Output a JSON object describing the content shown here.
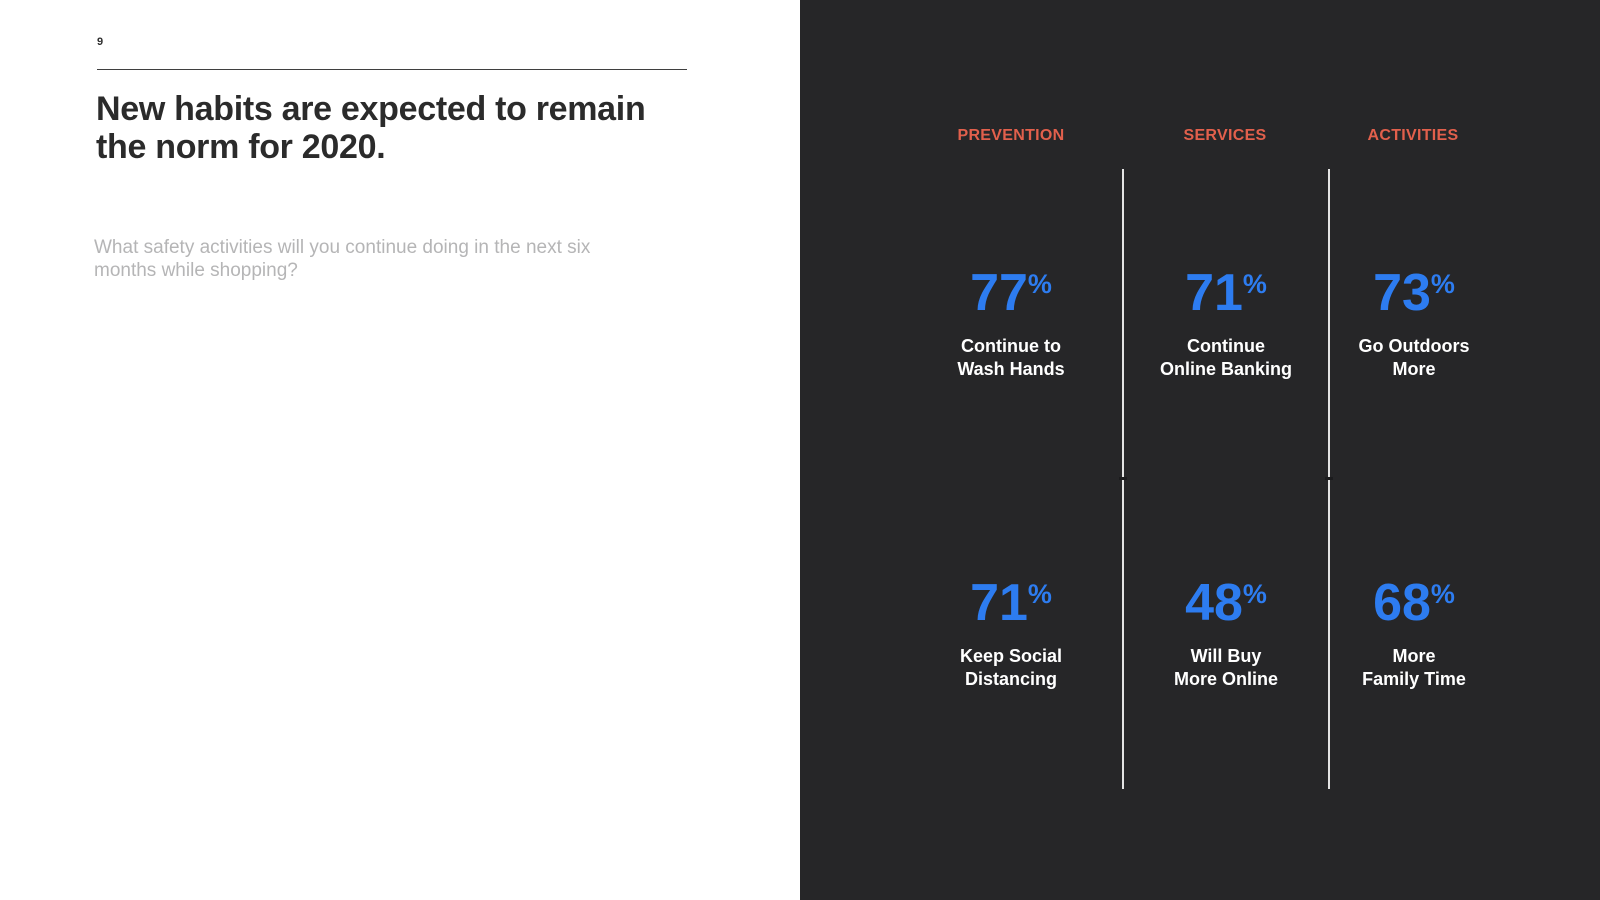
{
  "slide": {
    "page_number": "9",
    "title": "New habits are expected to remain the norm for 2020.",
    "subtitle": "What safety activities will you continue doing in the next six months while shopping?"
  },
  "colors": {
    "accent_blue": "#2d7cf0",
    "accent_orange": "#e2604c",
    "panel_background": "#262628"
  },
  "stats": {
    "columns": [
      {
        "header": "PREVENTION",
        "stats": [
          {
            "value": "77",
            "unit": "%",
            "label_lines": [
              "Continue to",
              "Wash Hands"
            ]
          },
          {
            "value": "71",
            "unit": "%",
            "label_lines": [
              "Keep Social",
              "Distancing"
            ]
          }
        ]
      },
      {
        "header": "SERVICES",
        "stats": [
          {
            "value": "71",
            "unit": "%",
            "label_lines": [
              "Continue",
              "Online Banking"
            ]
          },
          {
            "value": "48",
            "unit": "%",
            "label_lines": [
              "Will Buy",
              "More Online"
            ]
          }
        ]
      },
      {
        "header": "ACTIVITIES",
        "stats": [
          {
            "value": "73",
            "unit": "%",
            "label_lines": [
              "Go Outdoors",
              "More"
            ]
          },
          {
            "value": "68",
            "unit": "%",
            "label_lines": [
              "More",
              "Family Time"
            ]
          }
        ]
      }
    ]
  },
  "chart_data": {
    "type": "table",
    "title": "New habits are expected to remain the norm for 2020.",
    "question": "What safety activities will you continue doing in the next six months while shopping?",
    "categories": [
      "PREVENTION",
      "SERVICES",
      "ACTIVITIES"
    ],
    "series": [
      {
        "name": "PREVENTION",
        "values": [
          77,
          71
        ],
        "labels": [
          "Continue to Wash Hands",
          "Keep Social Distancing"
        ]
      },
      {
        "name": "SERVICES",
        "values": [
          71,
          48
        ],
        "labels": [
          "Continue Online Banking",
          "Will Buy More Online"
        ]
      },
      {
        "name": "ACTIVITIES",
        "values": [
          73,
          68
        ],
        "labels": [
          "Go Outdoors More",
          "More Family Time"
        ]
      }
    ],
    "unit": "%"
  }
}
